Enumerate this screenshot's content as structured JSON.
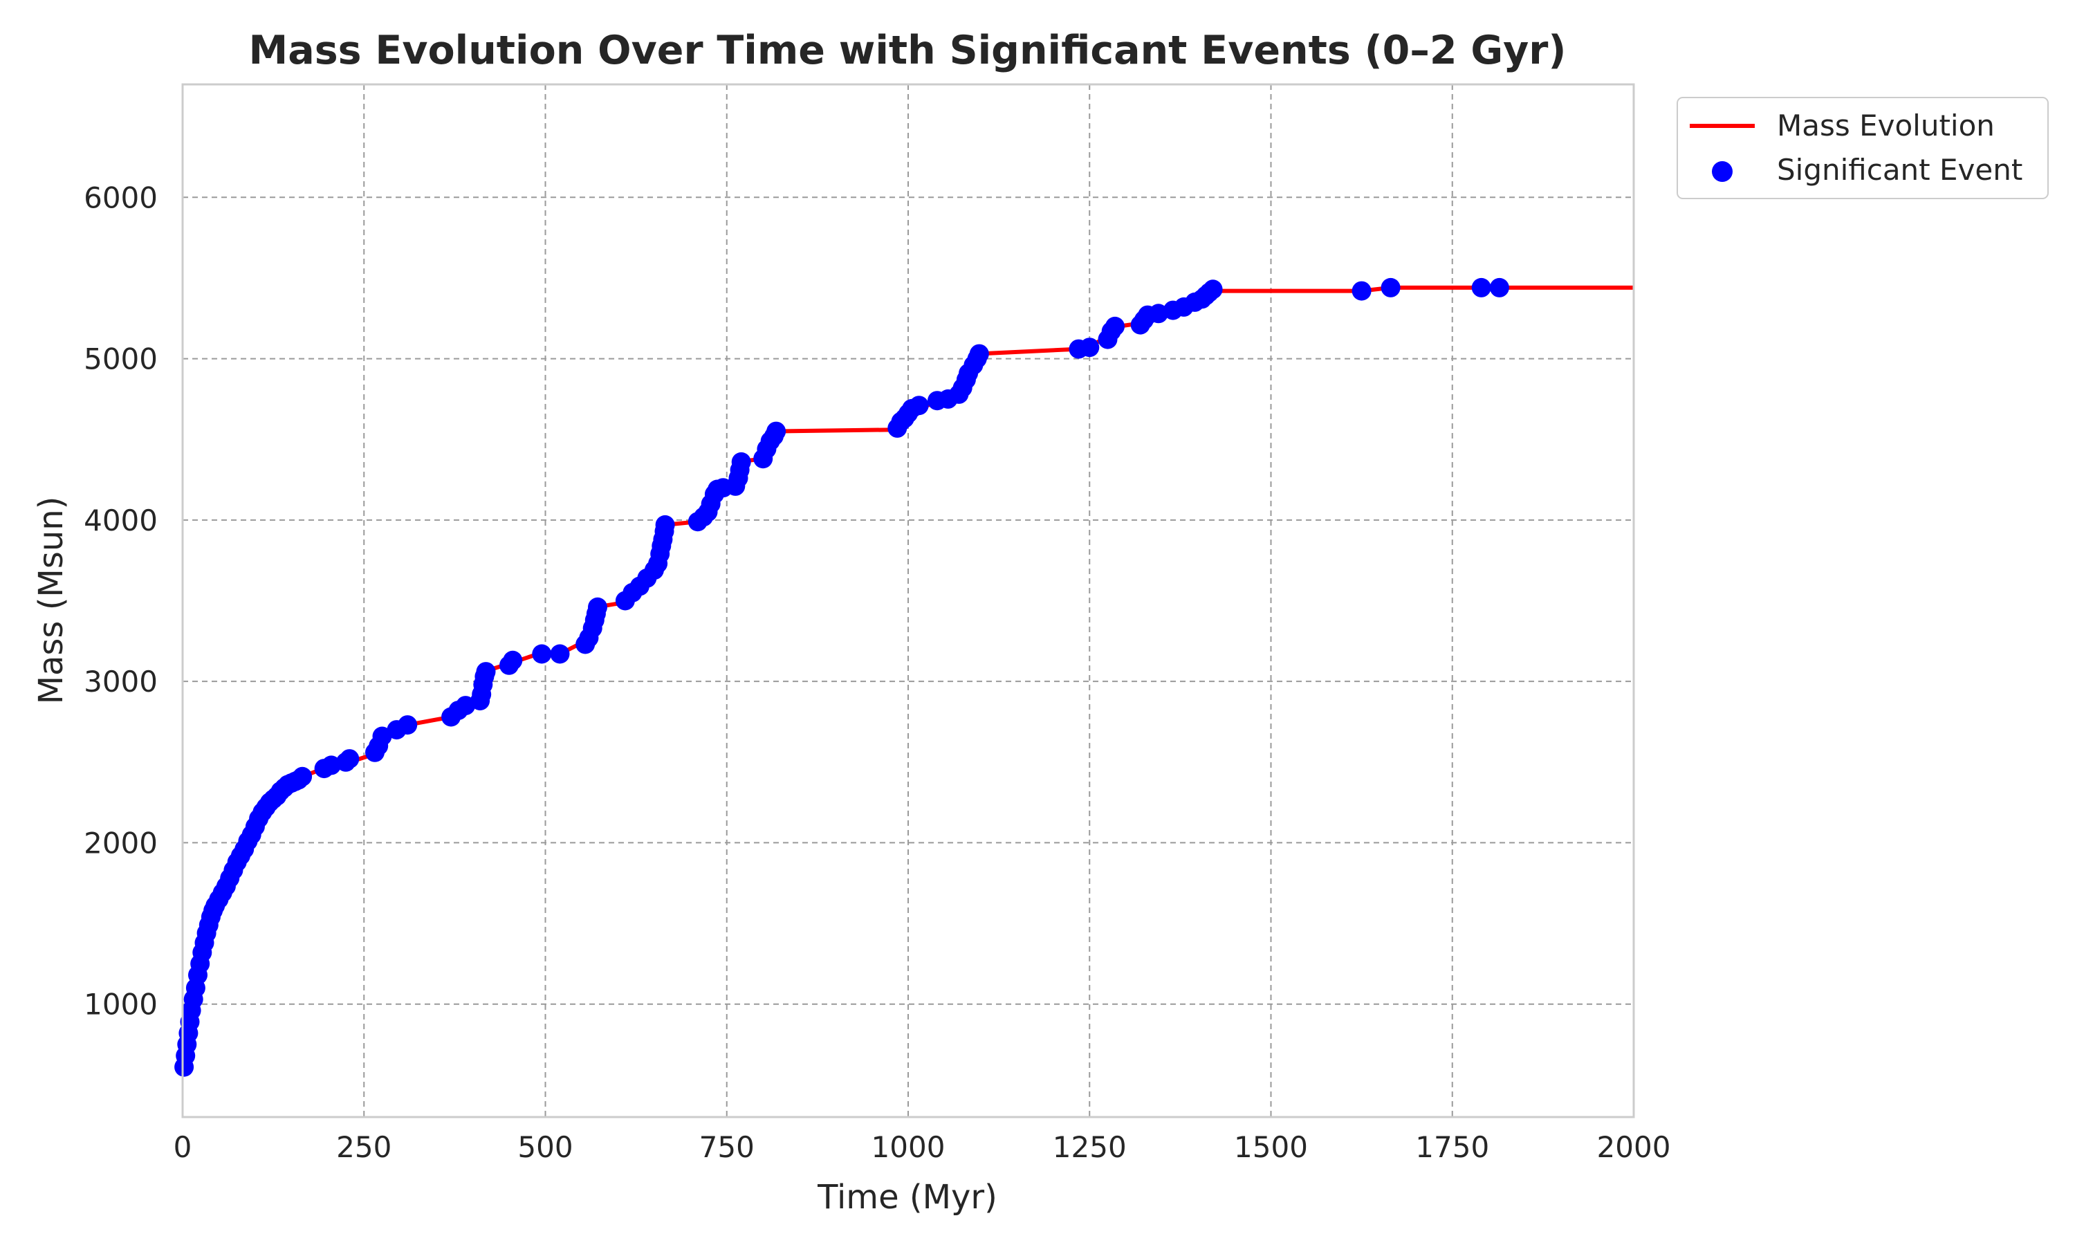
{
  "chart_data": {
    "type": "line",
    "title": "Mass Evolution Over Time with Significant Events (0–2 Gyr)",
    "xlabel": "Time (Myr)",
    "ylabel": "Mass (Msun)",
    "xlim": [
      0,
      2000
    ],
    "ylim": [
      300,
      6700
    ],
    "xticks": [
      0,
      250,
      500,
      750,
      1000,
      1250,
      1500,
      1750,
      2000
    ],
    "yticks": [
      1000,
      2000,
      3000,
      4000,
      5000,
      6000
    ],
    "xtick_labels": [
      "0",
      "250",
      "500",
      "750",
      "1000",
      "1250",
      "1500",
      "1750",
      "2000"
    ],
    "ytick_labels": [
      "1000",
      "2000",
      "3000",
      "4000",
      "5000",
      "6000"
    ],
    "grid": true,
    "legend": {
      "position": "outside-top-right",
      "entries": [
        "Mass Evolution",
        "Significant Event"
      ]
    },
    "colors": {
      "line": "#ff0000",
      "marker": "#0000ff",
      "grid": "#9a9a9a",
      "axes": "#cccccc"
    },
    "series": [
      {
        "name": "Mass Evolution",
        "type": "line",
        "x": [
          0,
          2,
          5,
          8,
          10,
          15,
          20,
          25,
          30,
          35,
          40,
          45,
          50,
          60,
          70,
          80,
          90,
          100,
          110,
          120,
          130,
          140,
          150,
          165,
          200,
          230,
          265,
          275,
          300,
          310,
          370,
          385,
          410,
          415,
          450,
          490,
          520,
          555,
          570,
          610,
          640,
          660,
          665,
          710,
          730,
          760,
          765,
          800,
          815,
          985,
          1000,
          1010,
          1050,
          1070,
          1080,
          1095,
          1235,
          1260,
          1280,
          1290,
          1320,
          1330,
          1360,
          1400,
          1425,
          1625,
          1665,
          1790,
          1815,
          2000
        ],
        "y": [
          600,
          700,
          800,
          900,
          1000,
          1100,
          1200,
          1300,
          1400,
          1480,
          1560,
          1620,
          1680,
          1780,
          1880,
          1960,
          2050,
          2140,
          2220,
          2270,
          2320,
          2360,
          2390,
          2410,
          2470,
          2500,
          2550,
          2650,
          2700,
          2730,
          2780,
          2830,
          2870,
          3060,
          3110,
          3170,
          3170,
          3250,
          3460,
          3490,
          3650,
          3700,
          3970,
          3990,
          4180,
          4210,
          4360,
          4380,
          4550,
          4560,
          4620,
          4690,
          4740,
          4800,
          4900,
          5030,
          5060,
          5100,
          5150,
          5200,
          5220,
          5280,
          5300,
          5370,
          5420,
          5420,
          5440,
          5440,
          5440,
          5440
        ]
      },
      {
        "name": "Significant Event",
        "type": "scatter",
        "x": [
          2,
          4,
          6,
          8,
          10,
          12,
          15,
          18,
          21,
          24,
          27,
          30,
          33,
          36,
          39,
          42,
          45,
          50,
          55,
          60,
          65,
          70,
          75,
          80,
          85,
          90,
          95,
          100,
          105,
          110,
          115,
          120,
          125,
          130,
          135,
          140,
          145,
          150,
          155,
          160,
          165,
          195,
          205,
          225,
          230,
          265,
          270,
          275,
          295,
          310,
          370,
          380,
          390,
          410,
          412,
          414,
          416,
          418,
          450,
          455,
          495,
          520,
          555,
          560,
          565,
          568,
          570,
          572,
          610,
          620,
          630,
          640,
          650,
          655,
          658,
          660,
          662,
          664,
          665,
          710,
          718,
          724,
          728,
          733,
          737,
          745,
          762,
          766,
          768,
          770,
          800,
          805,
          810,
          815,
          818,
          985,
          990,
          995,
          1000,
          1005,
          1015,
          1040,
          1055,
          1070,
          1075,
          1080,
          1083,
          1090,
          1095,
          1098,
          1235,
          1250,
          1275,
          1280,
          1285,
          1320,
          1325,
          1330,
          1345,
          1365,
          1380,
          1395,
          1405,
          1410,
          1415,
          1420,
          1625,
          1665,
          1790,
          1815
        ],
        "y": [
          610,
          680,
          750,
          820,
          890,
          960,
          1030,
          1100,
          1180,
          1250,
          1320,
          1380,
          1440,
          1490,
          1540,
          1580,
          1610,
          1650,
          1690,
          1730,
          1780,
          1830,
          1880,
          1920,
          1960,
          2010,
          2050,
          2100,
          2150,
          2190,
          2220,
          2250,
          2270,
          2290,
          2320,
          2340,
          2360,
          2370,
          2380,
          2390,
          2410,
          2460,
          2480,
          2500,
          2520,
          2560,
          2600,
          2660,
          2700,
          2730,
          2780,
          2820,
          2850,
          2880,
          2920,
          2980,
          3030,
          3060,
          3100,
          3130,
          3170,
          3170,
          3230,
          3270,
          3330,
          3380,
          3420,
          3460,
          3500,
          3550,
          3590,
          3640,
          3690,
          3730,
          3790,
          3840,
          3880,
          3930,
          3970,
          3990,
          4020,
          4050,
          4100,
          4160,
          4190,
          4200,
          4210,
          4260,
          4310,
          4360,
          4380,
          4440,
          4490,
          4520,
          4550,
          4570,
          4610,
          4630,
          4660,
          4690,
          4710,
          4740,
          4750,
          4780,
          4820,
          4870,
          4910,
          4960,
          5000,
          5030,
          5060,
          5070,
          5120,
          5170,
          5200,
          5210,
          5240,
          5270,
          5280,
          5300,
          5320,
          5350,
          5370,
          5390,
          5410,
          5430,
          5420,
          5440,
          5440,
          5440
        ]
      }
    ]
  }
}
